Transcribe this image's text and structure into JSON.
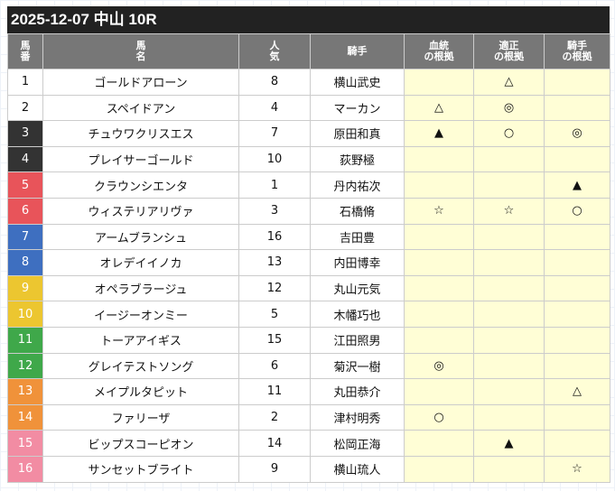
{
  "title": "2025-12-07 中山 10R",
  "headers": {
    "num": "馬\n番",
    "name": "馬\n名",
    "pop": "人\n気",
    "jockey": "騎手",
    "blood": "血統\nの根拠",
    "fit": "適正\nの根拠",
    "jock": "騎手\nの根拠"
  },
  "frame_colors": {
    "1": "#ffffff",
    "2": "#ffffff",
    "3": "#333333",
    "4": "#333333",
    "5": "#e8545a",
    "6": "#e8545a",
    "7": "#3e6fc0",
    "8": "#3e6fc0",
    "9": "#ecc630",
    "10": "#ecc630",
    "11": "#3fa84a",
    "12": "#3fa84a",
    "13": "#f0923a",
    "14": "#f0923a",
    "15": "#f28ca3",
    "16": "#f28ca3"
  },
  "rows": [
    {
      "num": "1",
      "name": "ゴールドアローン",
      "pop": "8",
      "jockey": "横山武史",
      "blood": "",
      "fit": "△",
      "jock": ""
    },
    {
      "num": "2",
      "name": "スペイドアン",
      "pop": "4",
      "jockey": "マーカン",
      "blood": "△",
      "fit": "◎",
      "jock": ""
    },
    {
      "num": "3",
      "name": "チュウワクリスエス",
      "pop": "7",
      "jockey": "原田和真",
      "blood": "▲",
      "fit": "○",
      "jock": "◎"
    },
    {
      "num": "4",
      "name": "プレイサーゴールド",
      "pop": "10",
      "jockey": "荻野極",
      "blood": "",
      "fit": "",
      "jock": ""
    },
    {
      "num": "5",
      "name": "クラウンシエンタ",
      "pop": "1",
      "jockey": "丹内祐次",
      "blood": "",
      "fit": "",
      "jock": "▲"
    },
    {
      "num": "6",
      "name": "ウィステリアリヴァ",
      "pop": "3",
      "jockey": "石橋脩",
      "blood": "☆",
      "fit": "☆",
      "jock": "○"
    },
    {
      "num": "7",
      "name": "アームブランシュ",
      "pop": "16",
      "jockey": "吉田豊",
      "blood": "",
      "fit": "",
      "jock": ""
    },
    {
      "num": "8",
      "name": "オレデイイノカ",
      "pop": "13",
      "jockey": "内田博幸",
      "blood": "",
      "fit": "",
      "jock": ""
    },
    {
      "num": "9",
      "name": "オペラブラージュ",
      "pop": "12",
      "jockey": "丸山元気",
      "blood": "",
      "fit": "",
      "jock": ""
    },
    {
      "num": "10",
      "name": "イージーオンミー",
      "pop": "5",
      "jockey": "木幡巧也",
      "blood": "",
      "fit": "",
      "jock": ""
    },
    {
      "num": "11",
      "name": "トーアアイギス",
      "pop": "15",
      "jockey": "江田照男",
      "blood": "",
      "fit": "",
      "jock": ""
    },
    {
      "num": "12",
      "name": "グレイテストソング",
      "pop": "6",
      "jockey": "菊沢一樹",
      "blood": "◎",
      "fit": "",
      "jock": ""
    },
    {
      "num": "13",
      "name": "メイプルタピット",
      "pop": "11",
      "jockey": "丸田恭介",
      "blood": "",
      "fit": "",
      "jock": "△"
    },
    {
      "num": "14",
      "name": "ファリーザ",
      "pop": "2",
      "jockey": "津村明秀",
      "blood": "○",
      "fit": "",
      "jock": ""
    },
    {
      "num": "15",
      "name": "ビップスコーピオン",
      "pop": "14",
      "jockey": "松岡正海",
      "blood": "",
      "fit": "▲",
      "jock": ""
    },
    {
      "num": "16",
      "name": "サンセットブライト",
      "pop": "9",
      "jockey": "横山琉人",
      "blood": "",
      "fit": "",
      "jock": "☆"
    }
  ]
}
